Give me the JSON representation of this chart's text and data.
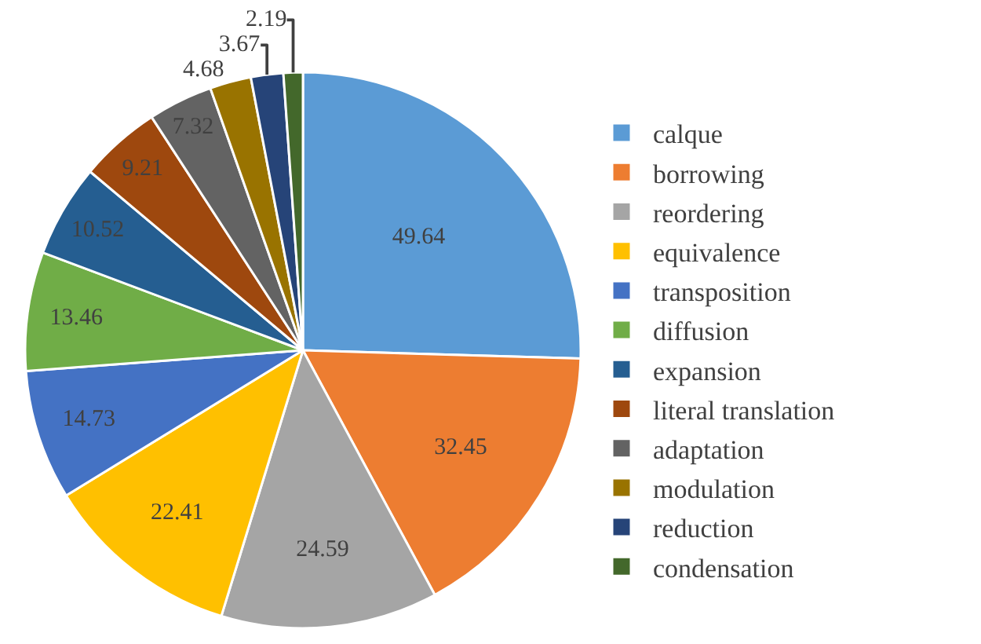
{
  "chart_data": {
    "type": "pie",
    "categories": [
      "calque",
      "borrowing",
      "reordering",
      "equivalence",
      "transposition",
      "diffusion",
      "expansion",
      "literal translation",
      "adaptation",
      "modulation",
      "reduction",
      "condensation"
    ],
    "values": [
      49.64,
      32.45,
      24.59,
      22.41,
      14.73,
      13.46,
      10.52,
      9.21,
      7.32,
      4.68,
      3.67,
      2.19
    ],
    "colors": [
      "#5b9bd5",
      "#ed7d31",
      "#a5a5a5",
      "#ffc000",
      "#4472c4",
      "#70ad47",
      "#255e91",
      "#9e480e",
      "#636363",
      "#997300",
      "#264478",
      "#43682b"
    ],
    "data_labels": true,
    "legend": "right"
  }
}
